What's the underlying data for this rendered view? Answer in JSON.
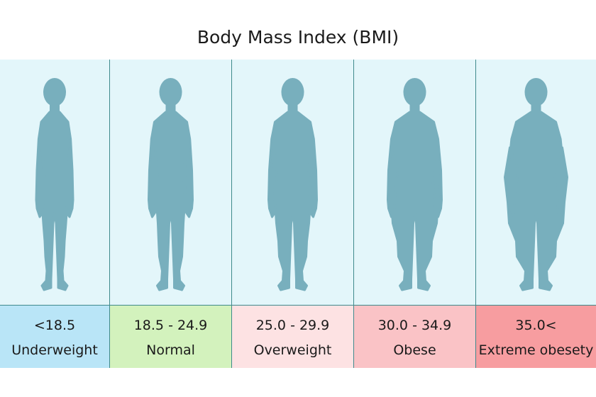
{
  "title": "Body Mass Index (BMI)",
  "figure_color": "#78afbd",
  "categories": [
    {
      "range": "<18.5",
      "label": "Underweight",
      "color": "#b9e5f7"
    },
    {
      "range": "18.5 - 24.9",
      "label": "Normal",
      "color": "#d3f2bd"
    },
    {
      "range": "25.0 - 29.9",
      "label": "Overweight",
      "color": "#fde2e3"
    },
    {
      "range": "30.0 - 34.9",
      "label": "Obese",
      "color": "#fac3c6"
    },
    {
      "range": "35.0<",
      "label": "Extreme obesety",
      "color": "#f79da0"
    }
  ]
}
